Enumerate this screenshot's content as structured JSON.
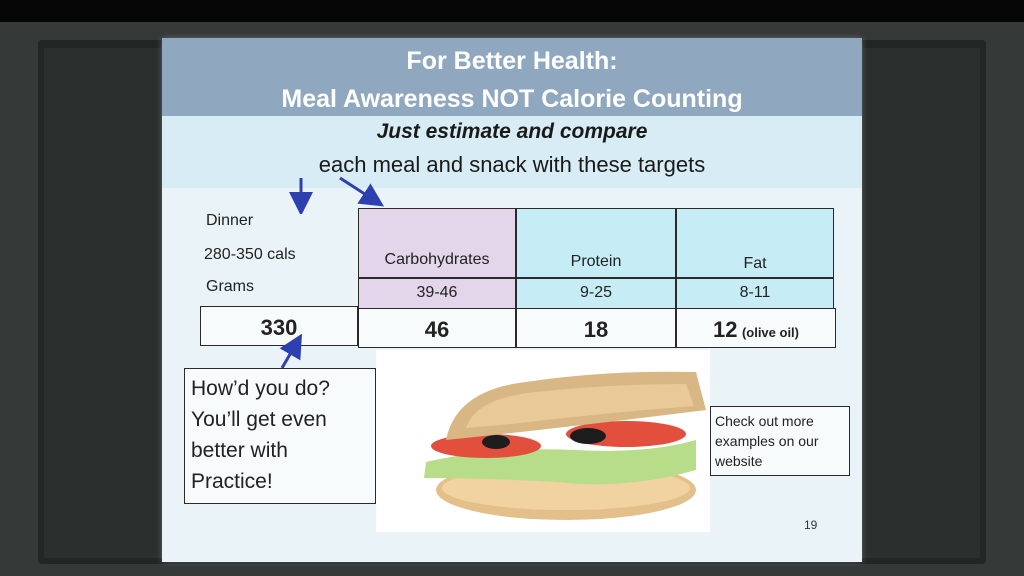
{
  "slide": {
    "title_line1": "For Better Health:",
    "title_line2": "Meal Awareness NOT Calorie Counting",
    "subtitle_italic": "Just estimate and compare",
    "subtitle": "each meal and snack with these targets",
    "table": {
      "meal_label": "Dinner",
      "cal_label": "280-350 cals",
      "grams_label": "Grams",
      "headers": [
        "Carbohydrates",
        "Protein",
        "Fat"
      ],
      "targets": [
        "39-46",
        "9-25",
        "8-11"
      ],
      "actual_total": "330",
      "actuals": [
        "46",
        "18",
        "12"
      ],
      "fat_note": "(olive oil)"
    },
    "prompt_text": "How’d you do? You’ll get even better with Practice!",
    "website_note": "Check out more examples on our website",
    "page_number": "19",
    "image_label": "sandwich-photo"
  }
}
